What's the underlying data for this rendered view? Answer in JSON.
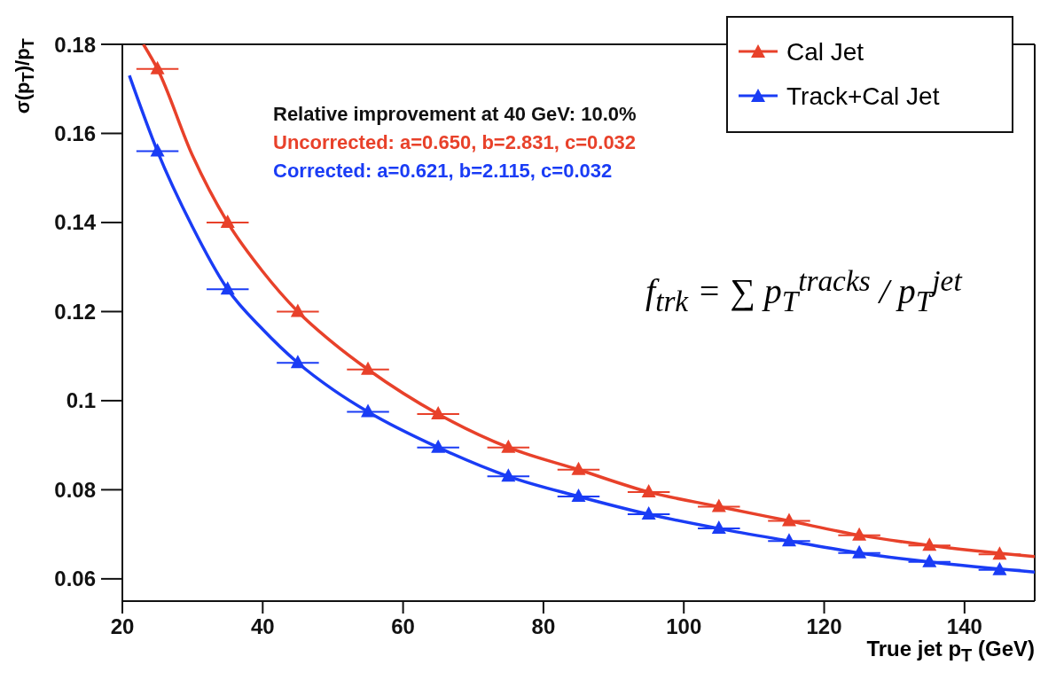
{
  "chart_data": {
    "type": "scatter",
    "xlabel": "True jet p$_{T}$ (GeV)",
    "ylabel": "σ(p$_{T}$)/p$_{T}$",
    "xlim": [
      20,
      150
    ],
    "xticks": [
      20,
      40,
      60,
      80,
      100,
      120,
      140
    ],
    "ylim": [
      0.055,
      0.18
    ],
    "yticks": [
      0.06,
      0.08,
      0.1,
      0.12,
      0.14,
      0.16,
      0.18
    ],
    "grid": false,
    "legend": "top right",
    "annotations": [
      "Relative improvement at 40 GeV: 10.0%",
      "Uncorrected: a=0.650, b=2.831, c=0.032",
      "Corrected: a=0.621, b=2.115, c=0.032",
      "f$_{trk}$ = ∑ p$_{T}$$^{tracks}$ / p$_{T}$$^{jet}$"
    ],
    "series": [
      {
        "name": "Cal Jet",
        "marker": "triangle",
        "color": "#e8412a",
        "x": [
          25,
          35,
          45,
          55,
          65,
          75,
          85,
          95,
          105,
          115,
          125,
          135,
          145
        ],
        "values": [
          0.1745,
          0.14,
          0.12,
          0.107,
          0.097,
          0.0895,
          0.0845,
          0.0795,
          0.0762,
          0.073,
          0.0698,
          0.0675,
          0.0655
        ],
        "xerrors": [
          3,
          3,
          3,
          3,
          3,
          3,
          3,
          3,
          3,
          3,
          3,
          3,
          3
        ]
      },
      {
        "name": "Track+Cal Jet",
        "marker": "triangle",
        "color": "#1a3cf5",
        "x": [
          25,
          35,
          45,
          55,
          65,
          75,
          85,
          95,
          105,
          115,
          125,
          135,
          145
        ],
        "values": [
          0.156,
          0.125,
          0.1085,
          0.0975,
          0.0895,
          0.083,
          0.0785,
          0.0745,
          0.0713,
          0.0685,
          0.0658,
          0.0638,
          0.062
        ],
        "xerrors": [
          3,
          3,
          3,
          3,
          3,
          3,
          3,
          3,
          3,
          3,
          3,
          3,
          3
        ]
      },
      {
        "type": "line",
        "color": "#e8412a",
        "x": [
          23,
          25,
          30,
          35,
          40,
          45,
          50,
          55,
          65,
          75,
          85,
          95,
          105,
          115,
          125,
          135,
          150
        ],
        "values": [
          0.18,
          0.1745,
          0.155,
          0.14,
          0.129,
          0.12,
          0.113,
          0.107,
          0.097,
          0.0895,
          0.0845,
          0.0795,
          0.0762,
          0.073,
          0.0698,
          0.0675,
          0.065
        ]
      },
      {
        "type": "line",
        "color": "#1a3cf5",
        "x": [
          21,
          25,
          30,
          35,
          40,
          45,
          50,
          55,
          65,
          75,
          85,
          95,
          105,
          115,
          125,
          135,
          150
        ],
        "values": [
          0.173,
          0.156,
          0.139,
          0.125,
          0.116,
          0.1085,
          0.1025,
          0.0975,
          0.0895,
          0.083,
          0.0785,
          0.0745,
          0.0713,
          0.0685,
          0.0658,
          0.0638,
          0.0615
        ]
      }
    ]
  }
}
